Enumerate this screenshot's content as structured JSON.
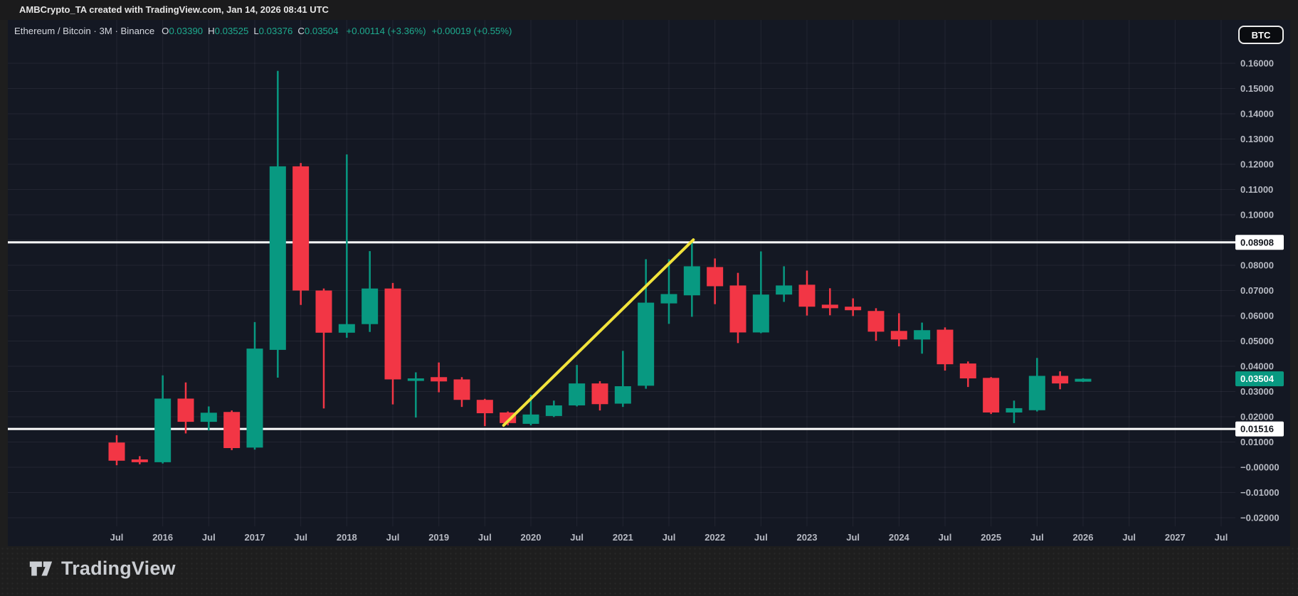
{
  "header": {
    "attribution": "AMBCrypto_TA created with TradingView.com, Jan 14, 2026 08:41 UTC"
  },
  "legend": {
    "title": "Ethereum / Bitcoin · 3M · Binance",
    "ohlc": [
      {
        "label": "O",
        "value": "0.03390"
      },
      {
        "label": "H",
        "value": "0.03525"
      },
      {
        "label": "L",
        "value": "0.03376"
      },
      {
        "label": "C",
        "value": "0.03504"
      }
    ],
    "changes": [
      "+0.00114 (+3.36%)",
      "+0.00019 (+0.55%)"
    ]
  },
  "quote_currency_button": "BTC",
  "footer": {
    "brand": "TradingView"
  },
  "chart_data": {
    "type": "candlestick",
    "title": "Ethereum / Bitcoin",
    "interval": "3M",
    "exchange": "Binance",
    "grid": true,
    "y_axis": {
      "side": "right",
      "range_top": 0.16,
      "range_bottom": -0.02,
      "ticks": [
        {
          "v": 0.16,
          "label": "0.16000"
        },
        {
          "v": 0.15,
          "label": "0.15000"
        },
        {
          "v": 0.14,
          "label": "0.14000"
        },
        {
          "v": 0.13,
          "label": "0.13000"
        },
        {
          "v": 0.12,
          "label": "0.12000"
        },
        {
          "v": 0.11,
          "label": "0.11000"
        },
        {
          "v": 0.1,
          "label": "0.10000"
        },
        {
          "v": 0.09,
          "label": null
        },
        {
          "v": 0.08,
          "label": "0.08000"
        },
        {
          "v": 0.07,
          "label": "0.07000"
        },
        {
          "v": 0.06,
          "label": "0.06000"
        },
        {
          "v": 0.05,
          "label": "0.05000"
        },
        {
          "v": 0.04,
          "label": "0.04000"
        },
        {
          "v": 0.03,
          "label": "0.03000"
        },
        {
          "v": 0.02,
          "label": "0.02000"
        },
        {
          "v": 0.01,
          "label": "0.01000"
        },
        {
          "v": 0.0,
          "label": "−0.00000"
        },
        {
          "v": -0.01,
          "label": "−0.01000"
        },
        {
          "v": -0.02,
          "label": "−0.02000"
        }
      ]
    },
    "x_axis": {
      "labels": [
        "Jul",
        "2016",
        "Jul",
        "2017",
        "Jul",
        "2018",
        "Jul",
        "2019",
        "Jul",
        "2020",
        "Jul",
        "2021",
        "Jul",
        "2022",
        "Jul",
        "2023",
        "Jul",
        "2024",
        "Jul",
        "2025",
        "Jul",
        "2026",
        "Jul",
        "2027",
        "Jul"
      ]
    },
    "candles": [
      {
        "t": "2015-Q3",
        "o": 0.0098,
        "h": 0.0127,
        "l": 0.0008,
        "c": 0.0026
      },
      {
        "t": "2015-Q4",
        "o": 0.0031,
        "h": 0.0044,
        "l": 0.0012,
        "c": 0.002
      },
      {
        "t": "2016-Q1",
        "o": 0.002,
        "h": 0.0364,
        "l": 0.0015,
        "c": 0.0272
      },
      {
        "t": "2016-Q2",
        "o": 0.0272,
        "h": 0.0336,
        "l": 0.0134,
        "c": 0.018
      },
      {
        "t": "2016-Q3",
        "o": 0.018,
        "h": 0.0241,
        "l": 0.0146,
        "c": 0.0216
      },
      {
        "t": "2016-Q4",
        "o": 0.0219,
        "h": 0.0225,
        "l": 0.0068,
        "c": 0.0076
      },
      {
        "t": "2017-Q1",
        "o": 0.0078,
        "h": 0.0575,
        "l": 0.007,
        "c": 0.047
      },
      {
        "t": "2017-Q2",
        "o": 0.0465,
        "h": 0.157,
        "l": 0.0355,
        "c": 0.1192
      },
      {
        "t": "2017-Q3",
        "o": 0.1192,
        "h": 0.1205,
        "l": 0.0643,
        "c": 0.07
      },
      {
        "t": "2017-Q4",
        "o": 0.07,
        "h": 0.0708,
        "l": 0.0233,
        "c": 0.0533
      },
      {
        "t": "2018-Q1",
        "o": 0.0533,
        "h": 0.1239,
        "l": 0.0513,
        "c": 0.0567
      },
      {
        "t": "2018-Q2",
        "o": 0.0567,
        "h": 0.0856,
        "l": 0.0536,
        "c": 0.0708
      },
      {
        "t": "2018-Q3",
        "o": 0.0708,
        "h": 0.073,
        "l": 0.0249,
        "c": 0.0348
      },
      {
        "t": "2018-Q4",
        "o": 0.0348,
        "h": 0.0376,
        "l": 0.0197,
        "c": 0.0352
      },
      {
        "t": "2019-Q1",
        "o": 0.0357,
        "h": 0.0415,
        "l": 0.0297,
        "c": 0.034
      },
      {
        "t": "2019-Q2",
        "o": 0.0348,
        "h": 0.0357,
        "l": 0.0239,
        "c": 0.0267
      },
      {
        "t": "2019-Q3",
        "o": 0.0267,
        "h": 0.0271,
        "l": 0.0163,
        "c": 0.0214
      },
      {
        "t": "2019-Q4",
        "o": 0.0217,
        "h": 0.0221,
        "l": 0.0166,
        "c": 0.0175
      },
      {
        "t": "2020-Q1",
        "o": 0.0172,
        "h": 0.0287,
        "l": 0.0166,
        "c": 0.0209
      },
      {
        "t": "2020-Q2",
        "o": 0.0203,
        "h": 0.0264,
        "l": 0.0199,
        "c": 0.0245
      },
      {
        "t": "2020-Q3",
        "o": 0.0245,
        "h": 0.0405,
        "l": 0.0241,
        "c": 0.0332
      },
      {
        "t": "2020-Q4",
        "o": 0.0332,
        "h": 0.0341,
        "l": 0.0225,
        "c": 0.025
      },
      {
        "t": "2021-Q1",
        "o": 0.0252,
        "h": 0.0461,
        "l": 0.0239,
        "c": 0.0321
      },
      {
        "t": "2021-Q2",
        "o": 0.0323,
        "h": 0.0824,
        "l": 0.0311,
        "c": 0.0652
      },
      {
        "t": "2021-Q3",
        "o": 0.0649,
        "h": 0.0824,
        "l": 0.0568,
        "c": 0.0686
      },
      {
        "t": "2021-Q4",
        "o": 0.0681,
        "h": 0.0892,
        "l": 0.0596,
        "c": 0.0796
      },
      {
        "t": "2022-Q1",
        "o": 0.0793,
        "h": 0.0827,
        "l": 0.0646,
        "c": 0.0717
      },
      {
        "t": "2022-Q2",
        "o": 0.072,
        "h": 0.077,
        "l": 0.0492,
        "c": 0.0534
      },
      {
        "t": "2022-Q3",
        "o": 0.0534,
        "h": 0.0855,
        "l": 0.0531,
        "c": 0.0684
      },
      {
        "t": "2022-Q4",
        "o": 0.0684,
        "h": 0.0796,
        "l": 0.0655,
        "c": 0.072
      },
      {
        "t": "2023-Q1",
        "o": 0.0723,
        "h": 0.0779,
        "l": 0.0601,
        "c": 0.0636
      },
      {
        "t": "2023-Q2",
        "o": 0.0644,
        "h": 0.0709,
        "l": 0.0602,
        "c": 0.063
      },
      {
        "t": "2023-Q3",
        "o": 0.0636,
        "h": 0.0669,
        "l": 0.0599,
        "c": 0.0622
      },
      {
        "t": "2023-Q4",
        "o": 0.0619,
        "h": 0.063,
        "l": 0.0501,
        "c": 0.0537
      },
      {
        "t": "2024-Q1",
        "o": 0.054,
        "h": 0.061,
        "l": 0.0479,
        "c": 0.0506
      },
      {
        "t": "2024-Q2",
        "o": 0.0506,
        "h": 0.0573,
        "l": 0.045,
        "c": 0.0543
      },
      {
        "t": "2024-Q3",
        "o": 0.0545,
        "h": 0.0554,
        "l": 0.0383,
        "c": 0.0408
      },
      {
        "t": "2024-Q4",
        "o": 0.0411,
        "h": 0.0419,
        "l": 0.0318,
        "c": 0.0352
      },
      {
        "t": "2025-Q1",
        "o": 0.0354,
        "h": 0.0357,
        "l": 0.0211,
        "c": 0.0217
      },
      {
        "t": "2025-Q2",
        "o": 0.0217,
        "h": 0.0264,
        "l": 0.0175,
        "c": 0.0234
      },
      {
        "t": "2025-Q3",
        "o": 0.0226,
        "h": 0.0433,
        "l": 0.0221,
        "c": 0.0362
      },
      {
        "t": "2025-Q4",
        "o": 0.0362,
        "h": 0.038,
        "l": 0.0309,
        "c": 0.0332
      },
      {
        "t": "2026-Q1",
        "o": 0.0339,
        "h": 0.03525,
        "l": 0.03376,
        "c": 0.03504
      }
    ],
    "horizontal_lines": [
      {
        "price": 0.08908,
        "label": "0.08908"
      },
      {
        "price": 0.01516,
        "label": "0.01516"
      }
    ],
    "trendline": {
      "from": {
        "t": "2019-Q4",
        "price": 0.0166
      },
      "to": {
        "t": "2021-Q4",
        "price": 0.0901
      }
    },
    "last_price": {
      "value": "0.03504"
    },
    "colors": {
      "up": "#089981",
      "down": "#f23645",
      "trendline": "#f2e33b",
      "level_line": "#ffffff",
      "last_price_tag": "#089981",
      "pane_bg": "#141823",
      "axis_text": "#b7bac3"
    }
  }
}
